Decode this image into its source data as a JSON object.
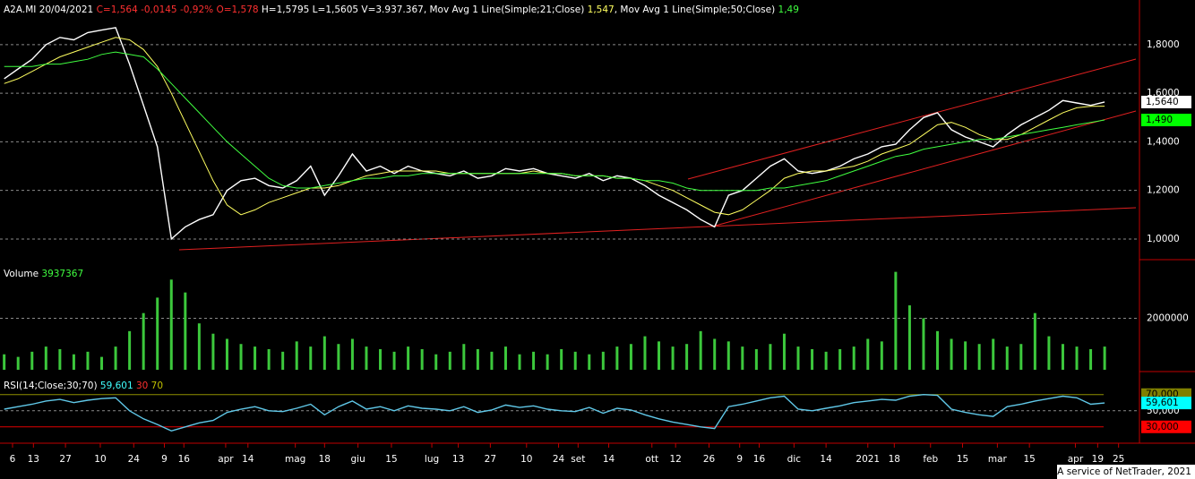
{
  "chart_data": [
    {
      "type": "line",
      "legend": [
        {
          "text": "A2A.MI 20/04/2021 ",
          "color": "#ffffff"
        },
        {
          "text": "C=1,564 -0,0145 -0,92% O=1,578",
          "color": "#ff3030"
        },
        {
          "text": " H=1,5795 L=1,5605 V=3.937.367, Mov Avg 1 Line(Simple;21;Close) ",
          "color": "#ffffff"
        },
        {
          "text": "1,547",
          "color": "#ffff60"
        },
        {
          "text": ", Mov Avg 1 Line(Simple;50;Close) ",
          "color": "#ffffff"
        },
        {
          "text": "1,49",
          "color": "#40ff40"
        }
      ],
      "x": [
        0,
        1,
        2,
        3,
        4,
        5,
        6,
        7,
        8,
        9,
        10,
        11,
        12,
        13,
        14,
        15,
        16,
        17,
        18,
        19,
        20,
        21,
        22,
        23,
        24,
        25,
        26,
        27,
        28,
        29,
        30,
        31,
        32,
        33,
        34,
        35,
        36,
        37,
        38,
        39,
        40,
        41,
        42,
        43,
        44,
        45,
        46,
        47,
        48,
        49,
        50,
        51,
        52,
        53,
        54,
        55,
        56,
        57,
        58,
        59,
        60,
        61,
        62,
        63,
        64,
        65,
        66,
        67,
        68,
        69,
        70,
        71,
        72,
        73,
        74,
        75,
        76,
        77,
        78,
        79
      ],
      "xlim": [
        -0.3,
        81.5
      ],
      "ylim": [
        0.915,
        1.984
      ],
      "yticks": [
        {
          "value": 1.0,
          "label": "1,0000"
        },
        {
          "value": 1.2,
          "label": "1,2000"
        },
        {
          "value": 1.4,
          "label": "1,4000"
        },
        {
          "value": 1.6,
          "label": "1,6000"
        },
        {
          "value": 1.8,
          "label": "1,8000"
        }
      ],
      "series": [
        {
          "color": "#ffffff",
          "values": [
            1.66,
            1.7,
            1.74,
            1.8,
            1.83,
            1.82,
            1.85,
            1.86,
            1.87,
            1.72,
            1.55,
            1.38,
            1.0,
            1.05,
            1.08,
            1.1,
            1.2,
            1.24,
            1.25,
            1.22,
            1.21,
            1.24,
            1.3,
            1.18,
            1.26,
            1.35,
            1.28,
            1.3,
            1.27,
            1.3,
            1.28,
            1.27,
            1.26,
            1.28,
            1.25,
            1.26,
            1.29,
            1.28,
            1.29,
            1.27,
            1.26,
            1.25,
            1.27,
            1.24,
            1.26,
            1.25,
            1.22,
            1.18,
            1.15,
            1.12,
            1.08,
            1.05,
            1.18,
            1.2,
            1.25,
            1.3,
            1.33,
            1.28,
            1.27,
            1.28,
            1.3,
            1.33,
            1.35,
            1.38,
            1.39,
            1.45,
            1.5,
            1.52,
            1.45,
            1.42,
            1.4,
            1.38,
            1.43,
            1.47,
            1.5,
            1.53,
            1.57,
            1.56,
            1.55,
            1.564
          ]
        },
        {
          "color": "#ffff60",
          "values": [
            1.64,
            1.66,
            1.69,
            1.72,
            1.75,
            1.77,
            1.79,
            1.81,
            1.83,
            1.82,
            1.78,
            1.71,
            1.6,
            1.48,
            1.36,
            1.24,
            1.14,
            1.1,
            1.12,
            1.15,
            1.17,
            1.19,
            1.21,
            1.21,
            1.22,
            1.24,
            1.26,
            1.27,
            1.28,
            1.28,
            1.28,
            1.28,
            1.27,
            1.27,
            1.27,
            1.27,
            1.27,
            1.27,
            1.28,
            1.27,
            1.27,
            1.26,
            1.26,
            1.26,
            1.25,
            1.25,
            1.24,
            1.22,
            1.2,
            1.17,
            1.14,
            1.11,
            1.1,
            1.12,
            1.16,
            1.2,
            1.25,
            1.27,
            1.28,
            1.28,
            1.29,
            1.3,
            1.32,
            1.35,
            1.37,
            1.39,
            1.43,
            1.47,
            1.48,
            1.46,
            1.43,
            1.41,
            1.41,
            1.43,
            1.46,
            1.49,
            1.52,
            1.54,
            1.546,
            1.547
          ]
        },
        {
          "color": "#40ff40",
          "values": [
            1.71,
            1.71,
            1.71,
            1.72,
            1.72,
            1.73,
            1.74,
            1.76,
            1.77,
            1.76,
            1.75,
            1.7,
            1.64,
            1.58,
            1.52,
            1.46,
            1.4,
            1.35,
            1.3,
            1.25,
            1.22,
            1.21,
            1.21,
            1.22,
            1.23,
            1.24,
            1.25,
            1.25,
            1.26,
            1.26,
            1.27,
            1.27,
            1.27,
            1.27,
            1.27,
            1.27,
            1.27,
            1.27,
            1.27,
            1.27,
            1.27,
            1.26,
            1.26,
            1.26,
            1.25,
            1.25,
            1.24,
            1.24,
            1.23,
            1.21,
            1.2,
            1.2,
            1.2,
            1.2,
            1.2,
            1.21,
            1.21,
            1.22,
            1.23,
            1.24,
            1.26,
            1.28,
            1.3,
            1.32,
            1.34,
            1.35,
            1.37,
            1.38,
            1.39,
            1.4,
            1.41,
            1.41,
            1.42,
            1.43,
            1.44,
            1.45,
            1.46,
            1.47,
            1.48,
            1.49
          ]
        }
      ],
      "tags": [
        {
          "value": 1.564,
          "label": "1,5640",
          "color": "#ffffff"
        },
        {
          "value": 1.49,
          "label": "1,490",
          "color": "#00ff00"
        }
      ]
    },
    {
      "type": "bar",
      "legend": [
        {
          "text": "Volume ",
          "color": "#ffffff"
        },
        {
          "text": "3937367",
          "color": "#40ff40"
        }
      ],
      "x": [
        0,
        1,
        2,
        3,
        4,
        5,
        6,
        7,
        8,
        9,
        10,
        11,
        12,
        13,
        14,
        15,
        16,
        17,
        18,
        19,
        20,
        21,
        22,
        23,
        24,
        25,
        26,
        27,
        28,
        29,
        30,
        31,
        32,
        33,
        34,
        35,
        36,
        37,
        38,
        39,
        40,
        41,
        42,
        43,
        44,
        45,
        46,
        47,
        48,
        49,
        50,
        51,
        52,
        53,
        54,
        55,
        56,
        57,
        58,
        59,
        60,
        61,
        62,
        63,
        64,
        65,
        66,
        67,
        68,
        69,
        70,
        71,
        72,
        73,
        74,
        75,
        76,
        77,
        78,
        79
      ],
      "xlim": [
        -0.3,
        81.5
      ],
      "ylim": [
        0,
        4100000
      ],
      "yticks": [
        2000000
      ],
      "color": "#3cc83c",
      "values": [
        600000,
        500000,
        700000,
        900000,
        800000,
        600000,
        700000,
        500000,
        900000,
        1500000,
        2200000,
        2800000,
        3500000,
        3000000,
        1800000,
        1400000,
        1200000,
        1000000,
        900000,
        800000,
        700000,
        1100000,
        900000,
        1300000,
        1000000,
        1200000,
        900000,
        800000,
        700000,
        900000,
        800000,
        600000,
        700000,
        1000000,
        800000,
        700000,
        900000,
        600000,
        700000,
        600000,
        800000,
        700000,
        600000,
        700000,
        900000,
        1000000,
        1300000,
        1100000,
        900000,
        1000000,
        1500000,
        1200000,
        1100000,
        900000,
        800000,
        1000000,
        1400000,
        900000,
        800000,
        700000,
        800000,
        900000,
        1200000,
        1100000,
        3800000,
        2500000,
        2000000,
        1500000,
        1200000,
        1100000,
        1000000,
        1200000,
        900000,
        1000000,
        2200000,
        1300000,
        1000000,
        900000,
        800000,
        900000
      ]
    },
    {
      "type": "line",
      "legend": [
        {
          "text": "RSI(14;Close;30;70) ",
          "color": "#ffffff"
        },
        {
          "text": "59,601",
          "color": "#40ffff"
        },
        {
          "text": " 30",
          "color": "#ff3030"
        },
        {
          "text": " 70",
          "color": "#c0c000"
        }
      ],
      "x": [
        0,
        1,
        2,
        3,
        4,
        5,
        6,
        7,
        8,
        9,
        10,
        11,
        12,
        13,
        14,
        15,
        16,
        17,
        18,
        19,
        20,
        21,
        22,
        23,
        24,
        25,
        26,
        27,
        28,
        29,
        30,
        31,
        32,
        33,
        34,
        35,
        36,
        37,
        38,
        39,
        40,
        41,
        42,
        43,
        44,
        45,
        46,
        47,
        48,
        49,
        50,
        51,
        52,
        53,
        54,
        55,
        56,
        57,
        58,
        59,
        60,
        61,
        62,
        63,
        64,
        65,
        66,
        67,
        68,
        69,
        70,
        71,
        72,
        73,
        74,
        75,
        76,
        77,
        78,
        79
      ],
      "xlim": [
        -0.3,
        81.5
      ],
      "ylim": [
        12,
        93
      ],
      "yticks": [
        {
          "value": 50,
          "label": "50,000"
        }
      ],
      "hlines": [
        {
          "value": 70,
          "color": "#909000"
        },
        {
          "value": 30,
          "color": "#e00000"
        }
      ],
      "series": [
        {
          "color": "#60c8e8",
          "values": [
            52,
            55,
            58,
            62,
            64,
            60,
            63,
            65,
            66,
            50,
            40,
            33,
            25,
            30,
            35,
            38,
            48,
            52,
            55,
            50,
            49,
            53,
            58,
            45,
            55,
            62,
            52,
            55,
            50,
            56,
            53,
            52,
            50,
            55,
            48,
            51,
            57,
            54,
            56,
            52,
            50,
            49,
            54,
            47,
            53,
            51,
            45,
            40,
            36,
            33,
            30,
            28,
            55,
            58,
            62,
            66,
            68,
            52,
            50,
            53,
            56,
            60,
            62,
            64,
            63,
            68,
            70,
            69,
            52,
            48,
            45,
            43,
            55,
            58,
            62,
            65,
            68,
            66,
            58,
            59.601
          ]
        }
      ],
      "tags": [
        {
          "value": 70,
          "label": "70,000",
          "color": "#808000"
        },
        {
          "value": 59.601,
          "label": "59,601",
          "color": "#00ffff"
        },
        {
          "value": 30,
          "label": "30,000",
          "color": "#ff0000"
        }
      ],
      "xticks": [
        {
          "value": 0.6,
          "label": "6"
        },
        {
          "value": 2.1,
          "label": "13"
        },
        {
          "value": 4.4,
          "label": "27"
        },
        {
          "value": 6.9,
          "label": "10"
        },
        {
          "value": 9.3,
          "label": "24"
        },
        {
          "value": 11.5,
          "label": "9"
        },
        {
          "value": 12.9,
          "label": "16"
        },
        {
          "value": 15.9,
          "label": "apr"
        },
        {
          "value": 17.5,
          "label": "14"
        },
        {
          "value": 20.9,
          "label": "mag"
        },
        {
          "value": 23.0,
          "label": "18"
        },
        {
          "value": 25.4,
          "label": "giu"
        },
        {
          "value": 27.8,
          "label": "15"
        },
        {
          "value": 30.7,
          "label": "lug"
        },
        {
          "value": 32.6,
          "label": "13"
        },
        {
          "value": 34.9,
          "label": "27"
        },
        {
          "value": 37.5,
          "label": "10"
        },
        {
          "value": 39.8,
          "label": "24"
        },
        {
          "value": 41.2,
          "label": "set"
        },
        {
          "value": 43.4,
          "label": "14"
        },
        {
          "value": 46.5,
          "label": "ott"
        },
        {
          "value": 48.2,
          "label": "12"
        },
        {
          "value": 50.6,
          "label": "26"
        },
        {
          "value": 52.8,
          "label": "9"
        },
        {
          "value": 54.2,
          "label": "16"
        },
        {
          "value": 56.7,
          "label": "dic"
        },
        {
          "value": 59.0,
          "label": "14"
        },
        {
          "value": 62.0,
          "label": "2021"
        },
        {
          "value": 63.9,
          "label": "18"
        },
        {
          "value": 66.5,
          "label": "feb"
        },
        {
          "value": 68.8,
          "label": "15"
        },
        {
          "value": 71.3,
          "label": "mar"
        },
        {
          "value": 73.6,
          "label": "15"
        },
        {
          "value": 76.9,
          "label": "apr"
        },
        {
          "value": 78.5,
          "label": "19"
        },
        {
          "value": 80.0,
          "label": "25"
        }
      ]
    }
  ],
  "footer": "A service of NetTrader, 2021"
}
